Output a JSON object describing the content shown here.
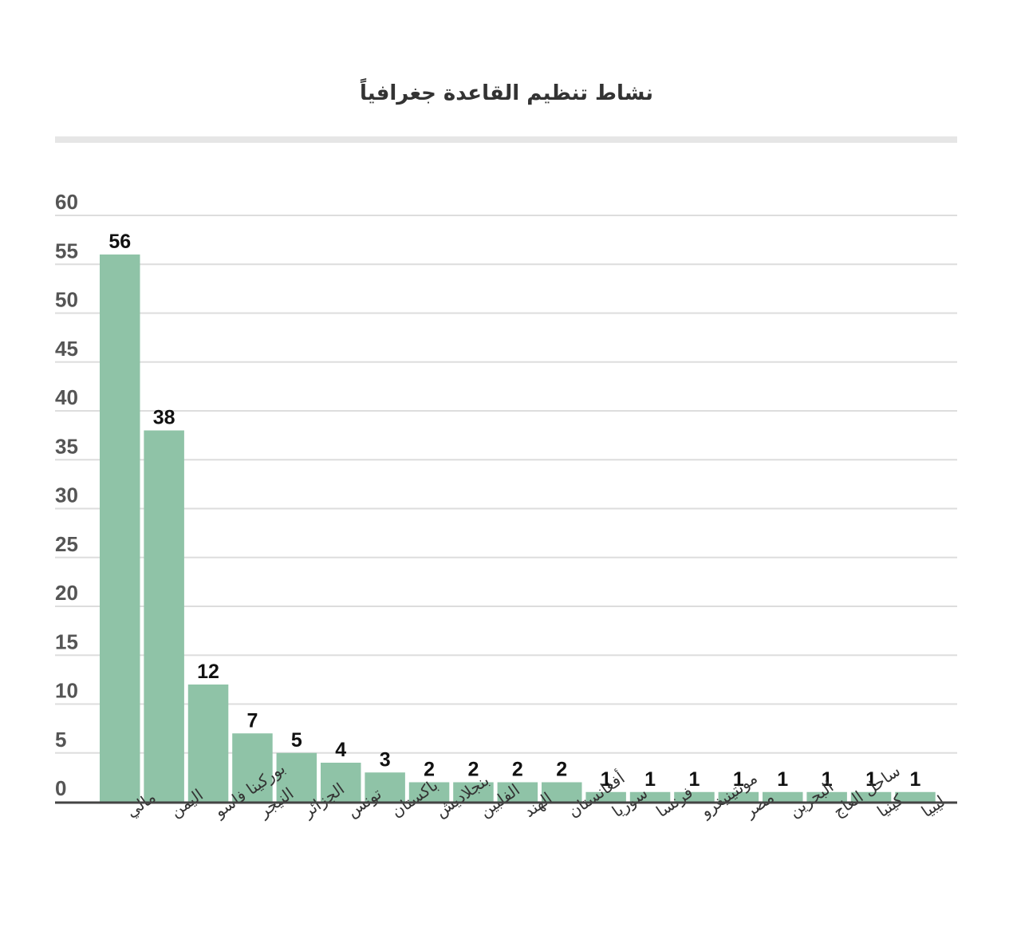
{
  "chart_data": {
    "type": "bar",
    "title": "نشاط تنظيم القاعدة جغرافياً",
    "categories": [
      "مالي",
      "اليمن",
      "بوركينا فاسو",
      "النيجر",
      "الجزائر",
      "تونس",
      "باكستان",
      "بنجلاديش",
      "الفلبين",
      "الهند",
      "أفغانستان",
      "سوريا",
      "فرنسا",
      "مونتينيغرو",
      "مصر",
      "البحرين",
      "ساحل العاج",
      "كينيا",
      "ليبيا"
    ],
    "values": [
      56,
      38,
      12,
      7,
      5,
      4,
      3,
      2,
      2,
      2,
      2,
      1,
      1,
      1,
      1,
      1,
      1,
      1,
      1
    ],
    "ylim": [
      0,
      60
    ],
    "yticks": [
      0,
      5,
      10,
      15,
      20,
      25,
      30,
      35,
      40,
      45,
      50,
      55,
      60
    ],
    "grid": true,
    "data_labels": true,
    "xlabel": "",
    "ylabel": "",
    "colors": {
      "bar": "#8fc3a7",
      "grid": "#dddddd",
      "axis": "#444444",
      "title_rule": "#e6e6e6"
    }
  }
}
